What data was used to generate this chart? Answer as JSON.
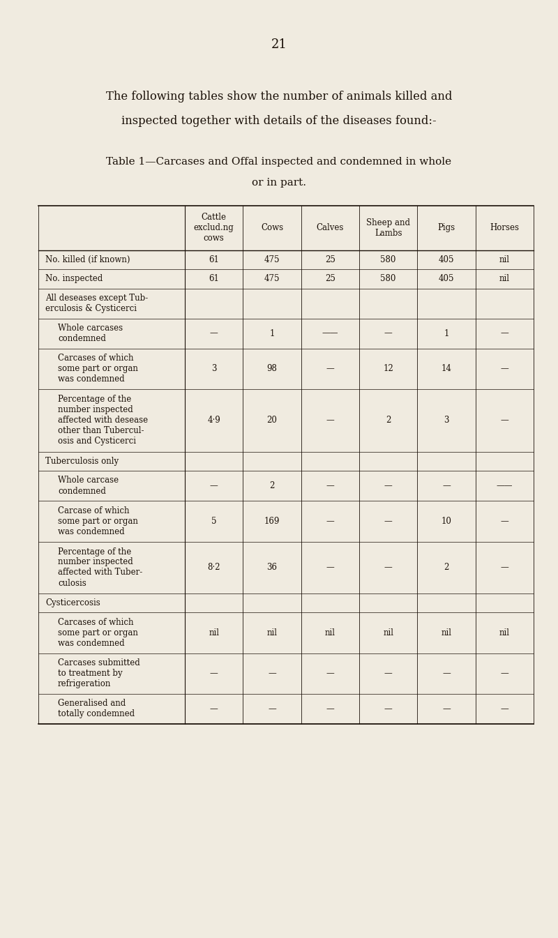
{
  "page_number": "21",
  "intro_text_line1": "The following tables show the number of animals killed and",
  "intro_text_line2": "inspected together with details of the diseases found:-",
  "table_title_line1": "Table 1—Carcases and Offal inspected and condemned in whole",
  "table_title_line2": "or in part.",
  "bg_color": "#F0EBE0",
  "text_color": "#1a1008",
  "col_headers": [
    "Cattle\nexclud.ng\ncows",
    "Cows",
    "Calves",
    "Sheep and\nLambs",
    "Pigs",
    "Horses"
  ],
  "rows": [
    {
      "label": "No. killed (if known)",
      "indent": 0,
      "values": [
        "61",
        "475",
        "25",
        "580",
        "405",
        "nil"
      ],
      "nlines": 1
    },
    {
      "label": "No. inspected",
      "indent": 0,
      "values": [
        "61",
        "475",
        "25",
        "580",
        "405",
        "nil"
      ],
      "nlines": 1
    },
    {
      "label": "All deseases except Tub-\nerculosis & Cysticerci",
      "indent": 0,
      "values": [
        "",
        "",
        "",
        "",
        "",
        ""
      ],
      "nlines": 2
    },
    {
      "label": "Whole carcases\ncondemned",
      "indent": 1,
      "values": [
        "—",
        "1",
        "——",
        "—",
        "1",
        "—"
      ],
      "nlines": 2
    },
    {
      "label": "Carcases of which\nsome part or organ\nwas condemned",
      "indent": 1,
      "values": [
        "3",
        "98",
        "—",
        "12",
        "14",
        "—"
      ],
      "nlines": 3
    },
    {
      "label": "Percentage of the\nnumber inspected\naffected with desease\nother than Tubercul-\nosis and Cysticerci",
      "indent": 1,
      "values": [
        "4·9",
        "20",
        "—",
        "2",
        "3",
        "—"
      ],
      "nlines": 5
    },
    {
      "label": "Tuberculosis only",
      "indent": 0,
      "values": [
        "",
        "",
        "",
        "",
        "",
        ""
      ],
      "nlines": 1
    },
    {
      "label": "Whole carcase\ncondemned",
      "indent": 1,
      "values": [
        "—",
        "2",
        "—",
        "—",
        "—",
        "——"
      ],
      "nlines": 2
    },
    {
      "label": "Carcase of which\nsome part or organ\nwas condemned",
      "indent": 1,
      "values": [
        "5",
        "169",
        "—",
        "—",
        "10",
        "—"
      ],
      "nlines": 3
    },
    {
      "label": "Percentage of the\nnumber inspected\naffected with Tuber-\nculosis",
      "indent": 1,
      "values": [
        "8·2",
        "36",
        "—",
        "—",
        "2",
        "—"
      ],
      "nlines": 4
    },
    {
      "label": "Cysticercosis",
      "indent": 0,
      "values": [
        "",
        "",
        "",
        "",
        "",
        ""
      ],
      "nlines": 1
    },
    {
      "label": "Carcases of which\nsome part or organ\nwas condemned",
      "indent": 1,
      "values": [
        "nil",
        "nil",
        "nil",
        "nil",
        "nil",
        "nil"
      ],
      "nlines": 3
    },
    {
      "label": "Carcases submitted\nto treatment by\nrefrigeration",
      "indent": 1,
      "values": [
        "—",
        "—",
        "—",
        "—",
        "—",
        "—"
      ],
      "nlines": 3
    },
    {
      "label": "Generalised and\ntotally condemned",
      "indent": 1,
      "values": [
        "—",
        "—",
        "—",
        "—",
        "—",
        "—"
      ],
      "nlines": 2
    }
  ]
}
